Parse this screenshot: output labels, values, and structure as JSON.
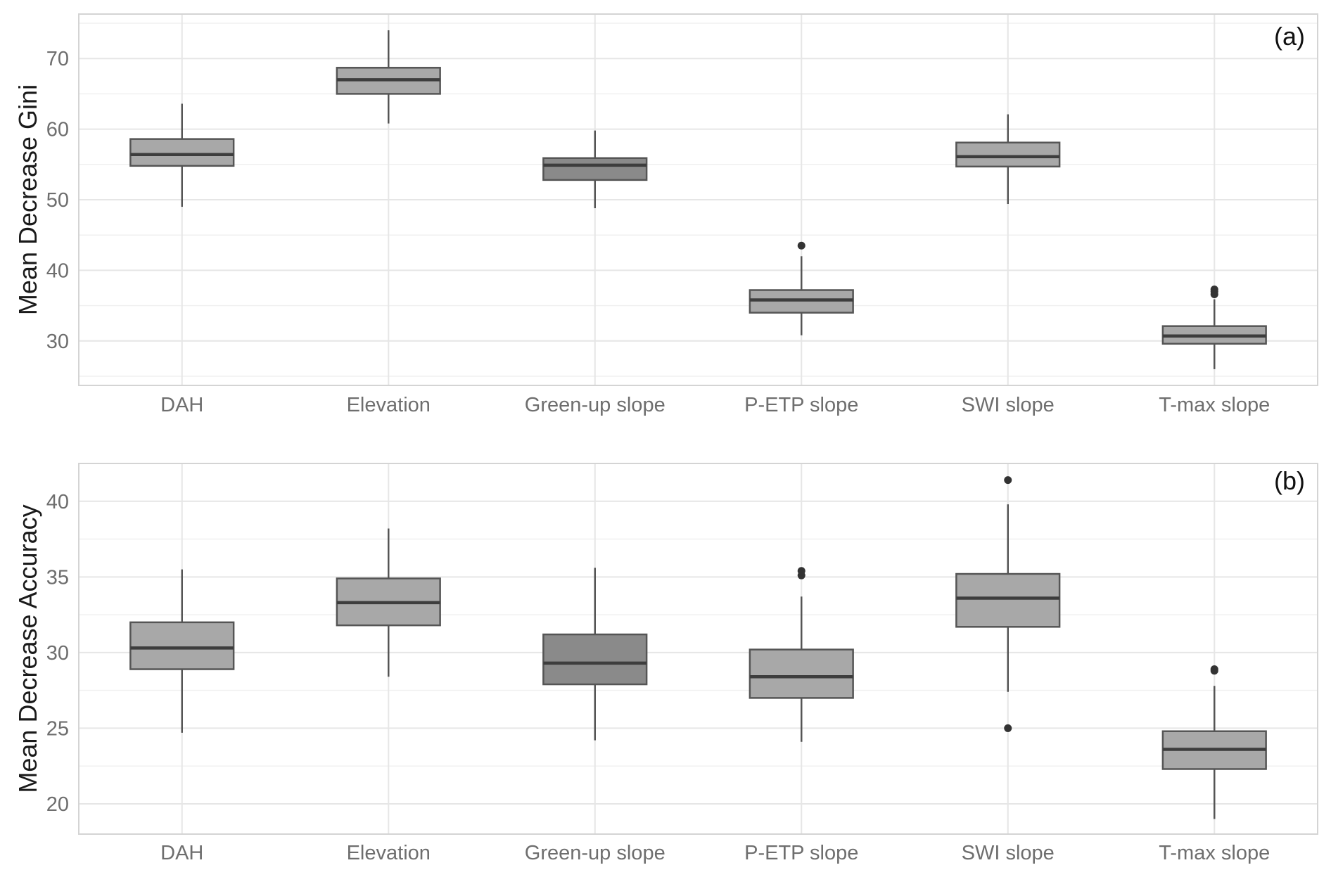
{
  "chart_data": [
    {
      "type": "boxplot",
      "panel_label": "(a)",
      "xlabel": "",
      "ylabel": "Mean Decrease Gini",
      "ylim": [
        23.7,
        76.3
      ],
      "yticks": [
        30,
        40,
        50,
        60,
        70
      ],
      "grid": true,
      "categories": [
        "DAH",
        "Elevation",
        "Green-up slope",
        "P-ETP slope",
        "SWI slope",
        "T-max slope"
      ],
      "boxes": [
        {
          "category": "DAH",
          "whisker_low": 49.0,
          "q1": 54.8,
          "median": 56.4,
          "q3": 58.6,
          "whisker_high": 63.6,
          "outliers": [],
          "fill": "#a8a8a8"
        },
        {
          "category": "Elevation",
          "whisker_low": 60.8,
          "q1": 65.0,
          "median": 67.0,
          "q3": 68.7,
          "whisker_high": 74.0,
          "outliers": [],
          "fill": "#a8a8a8"
        },
        {
          "category": "Green-up slope",
          "whisker_low": 48.8,
          "q1": 52.8,
          "median": 54.9,
          "q3": 55.9,
          "whisker_high": 59.8,
          "outliers": [],
          "fill": "#8a8a8a"
        },
        {
          "category": "P-ETP slope",
          "whisker_low": 30.8,
          "q1": 34.0,
          "median": 35.8,
          "q3": 37.2,
          "whisker_high": 42.0,
          "outliers": [
            43.5
          ],
          "fill": "#a8a8a8"
        },
        {
          "category": "SWI slope",
          "whisker_low": 49.4,
          "q1": 54.7,
          "median": 56.1,
          "q3": 58.1,
          "whisker_high": 62.1,
          "outliers": [],
          "fill": "#a8a8a8"
        },
        {
          "category": "T-max slope",
          "whisker_low": 26.0,
          "q1": 29.6,
          "median": 30.7,
          "q3": 32.1,
          "whisker_high": 35.9,
          "outliers": [
            36.6,
            37.0,
            37.3
          ],
          "fill": "#a8a8a8"
        }
      ]
    },
    {
      "type": "boxplot",
      "panel_label": "(b)",
      "xlabel": "",
      "ylabel": "Mean Decrease Accuracy",
      "ylim": [
        18.0,
        42.5
      ],
      "yticks": [
        20,
        25,
        30,
        35,
        40
      ],
      "grid": true,
      "categories": [
        "DAH",
        "Elevation",
        "Green-up slope",
        "P-ETP slope",
        "SWI slope",
        "T-max slope"
      ],
      "boxes": [
        {
          "category": "DAH",
          "whisker_low": 24.7,
          "q1": 28.9,
          "median": 30.3,
          "q3": 32.0,
          "whisker_high": 35.5,
          "outliers": [],
          "fill": "#a8a8a8"
        },
        {
          "category": "Elevation",
          "whisker_low": 28.4,
          "q1": 31.8,
          "median": 33.3,
          "q3": 34.9,
          "whisker_high": 38.2,
          "outliers": [],
          "fill": "#a8a8a8"
        },
        {
          "category": "Green-up slope",
          "whisker_low": 24.2,
          "q1": 27.9,
          "median": 29.3,
          "q3": 31.2,
          "whisker_high": 35.6,
          "outliers": [],
          "fill": "#8a8a8a"
        },
        {
          "category": "P-ETP slope",
          "whisker_low": 24.1,
          "q1": 27.0,
          "median": 28.4,
          "q3": 30.2,
          "whisker_high": 33.7,
          "outliers": [
            35.1,
            35.4
          ],
          "fill": "#a8a8a8"
        },
        {
          "category": "SWI slope",
          "whisker_low": 27.4,
          "q1": 31.7,
          "median": 33.6,
          "q3": 35.2,
          "whisker_high": 39.8,
          "outliers": [
            25.0,
            41.4
          ],
          "fill": "#a8a8a8"
        },
        {
          "category": "T-max slope",
          "whisker_low": 19.0,
          "q1": 22.3,
          "median": 23.6,
          "q3": 24.8,
          "whisker_high": 27.8,
          "outliers": [
            28.8,
            28.9
          ],
          "fill": "#a8a8a8"
        }
      ]
    }
  ]
}
